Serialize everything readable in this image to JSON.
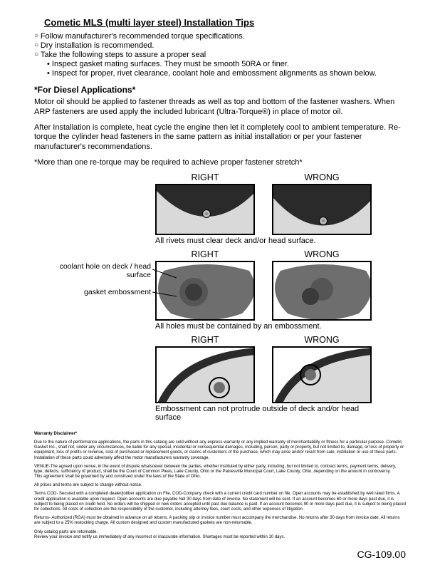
{
  "title": "Cometic MLS (multi layer steel) Installation Tips",
  "bullets": [
    {
      "cls": "o",
      "text": "Follow manufacturer's recommended torque specifications."
    },
    {
      "cls": "o",
      "text": "Dry installation is recommended."
    },
    {
      "cls": "o",
      "text": "Take the following steps to assure a proper seal"
    },
    {
      "cls": "b",
      "text": "Inspect gasket mating surfaces.  They must be smooth 50RA or finer."
    },
    {
      "cls": "b",
      "text": "Inspect for proper, rivet clearance, coolant hole and embossment alignments as shown below."
    }
  ],
  "sections": {
    "diesel_head": "*For Diesel Applications*",
    "diesel_p1": "Motor oil should be applied to fastener threads as well as top and bottom of the fastener washers. When ARP fasteners are used apply the included lubricant (Ultra-Torque®) in place of motor oil.",
    "diesel_p2": "After Installation is complete, heat cycle the engine then let it completely cool to ambient temperature. Re-torque the cylinder head fasteners in the same pattern as initial installation or per your fastener manufacturer's recommendations.",
    "note": "*More than one re-torque may be required to achieve proper fastener stretch*"
  },
  "labels": {
    "right": "RIGHT",
    "wrong": "WRONG"
  },
  "captions": {
    "row1": "All rivets must clear deck and/or head surface.",
    "row2": "All holes must be contained by an embossment.",
    "row3": "Embossment can not protrude outside of deck and/or head surface"
  },
  "lead": {
    "coolant": "coolant hole on deck / head surface",
    "emboss": "gasket embossment"
  },
  "colors": {
    "dark": "#2a2a2a",
    "mid": "#6e6e6e",
    "light": "#d9d9d9",
    "rivet": "#bababa"
  },
  "disclaimer": {
    "head": "Warranty Disclaimer*",
    "p1": "Due to the nature of performance applications, the parts in this catalog are sold without any express warranty or any implied warranty of merchantability or fitness for a particular purpose.  Cometic Gasket Inc., shall not, under any circumstances, be liable for any special, incidental or consequential damages, including, person, party or property, but not limited to, damage, or loss of property or equipment, loss of profits or revenue, cost of purchased or replacement goods, or claims of customers of the purchase, which may arise and/or result from sale, instillation or use of these parts.  Installation of these parts could adversely affect the motor manufacturers warranty coverage.",
    "p2": "VENUE-The agreed upon venue, in the event of dispute whatsoever between the parties, whether instituted by either party, including, but not limited to, contract terms, payment terms, delivery, type, defects, sufficiency of product, shall be the Court of Common Pleas, Lake County, Ohio or the Painesville Municipal Court, Lake County, Ohio, depending on the amount in controversy.\nThis agreement shall be governed by and construed under the laws of the State of Ohio.",
    "p3": "All prices and terms are subject to change without notice.",
    "p4": "Terms COD- Secured with a completed dealer/jobber application on File, COD-Company check with a current credit card number on file.  Open accounts may be established by well rated firms.  A credit application is available upon request.  Open accounts are due payable Net 30 days from date of invoice.  No statement will be sent.  If an account becomes 60 or more days past due, it is subject to being placed on credit hold.  No orders will be shipped or new orders accepted until past due balance is paid.  If an account becomes 90 or more days past due, it is subject to being placed for collections.  All costs of collection are the responsibility of the customer, including attorney fees, court costs, and other expenses of litigation.",
    "p5": "Returns- Authorized (RGA) must be obtained in advance on all returns.  A packing slip or invoice number must accompany the merchandise.  No returns after 30 days from invoice date.  All returns are subject to a 25% restocking charge.  All custom designed and custom manufactured gaskets are non-returnable.",
    "p6": "Only catalog parts are returnable.\nReview your invoice and notify us immediately of any incorrect or inaccurate information.  Shortages must be reported within 10 days."
  },
  "docnum": "CG-109.00"
}
